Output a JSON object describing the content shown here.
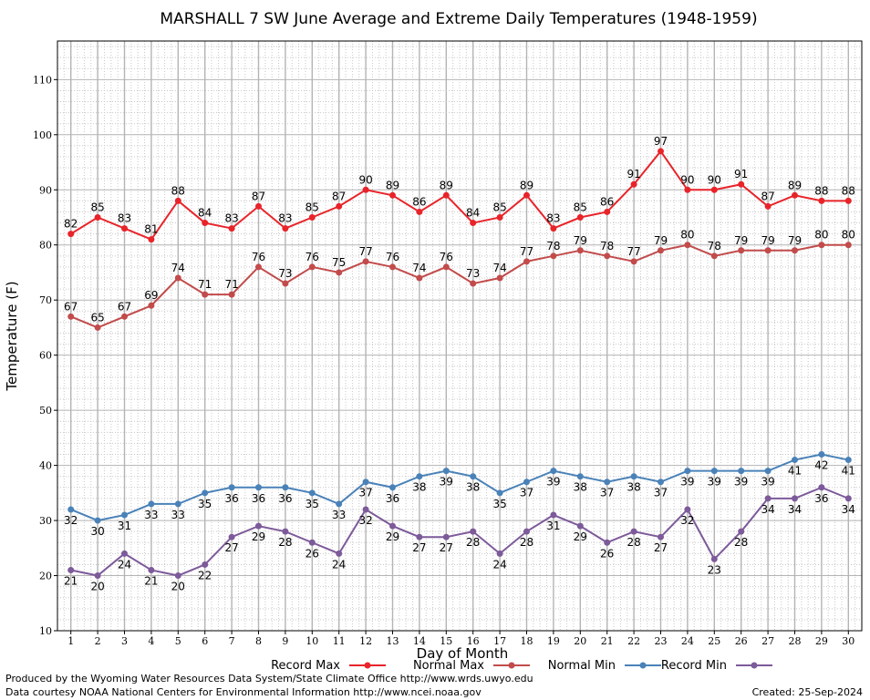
{
  "footer": {
    "line1": "Produced by the Wyoming Water Resources Data System/State Climate Office http://www.wrds.uwyo.edu",
    "line2": "Data courtesy NOAA National Centers for Environmental Information http://www.ncei.noaa.gov",
    "created": "Created:  25-Sep-2024"
  },
  "chart_data": {
    "type": "line",
    "title": "MARSHALL 7 SW June Average and Extreme Daily Temperatures (1948-1959)",
    "xlabel": "Day of Month",
    "ylabel": "Temperature (F)",
    "x": [
      1,
      2,
      3,
      4,
      5,
      6,
      7,
      8,
      9,
      10,
      11,
      12,
      13,
      14,
      15,
      16,
      17,
      18,
      19,
      20,
      21,
      22,
      23,
      24,
      25,
      26,
      27,
      28,
      29,
      30
    ],
    "xlim": [
      0.5,
      30.5
    ],
    "ylim": [
      10,
      117
    ],
    "yticks": [
      10,
      20,
      30,
      40,
      50,
      60,
      70,
      80,
      90,
      100,
      110
    ],
    "grid": true,
    "legend_placement": "bottom",
    "series": [
      {
        "name": "Record Max",
        "color": "#e8242a",
        "label_pos": "above",
        "values": [
          82,
          85,
          83,
          81,
          88,
          84,
          83,
          87,
          83,
          85,
          87,
          90,
          89,
          86,
          89,
          84,
          85,
          89,
          83,
          85,
          86,
          91,
          97,
          90,
          90,
          91,
          87,
          89,
          88,
          88
        ]
      },
      {
        "name": "Normal Max",
        "color": "#c24b4b",
        "label_pos": "above",
        "values": [
          67,
          65,
          67,
          69,
          74,
          71,
          71,
          76,
          73,
          76,
          75,
          77,
          76,
          74,
          76,
          73,
          74,
          77,
          78,
          79,
          78,
          77,
          79,
          80,
          78,
          79,
          79,
          79,
          80,
          80
        ]
      },
      {
        "name": "Normal Min",
        "color": "#4a82b8",
        "label_pos": "below",
        "values": [
          32,
          30,
          31,
          33,
          33,
          35,
          36,
          36,
          36,
          35,
          33,
          37,
          36,
          38,
          39,
          38,
          35,
          37,
          39,
          38,
          37,
          38,
          37,
          39,
          39,
          39,
          39,
          41,
          42,
          41
        ]
      },
      {
        "name": "Record Min",
        "color": "#7d5a9a",
        "label_pos": "below",
        "values": [
          21,
          20,
          24,
          21,
          20,
          22,
          27,
          29,
          28,
          26,
          24,
          32,
          29,
          27,
          27,
          28,
          24,
          28,
          31,
          29,
          26,
          28,
          27,
          32,
          23,
          28,
          34,
          34,
          36,
          34
        ]
      }
    ]
  }
}
